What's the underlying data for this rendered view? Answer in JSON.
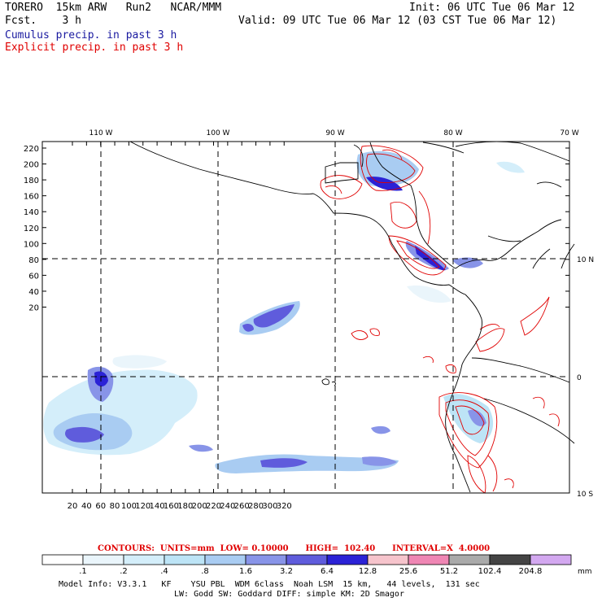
{
  "header": {
    "model_title": "TORERO  15km ARW   Run2   NCAR/MMM",
    "forecast": "Fcst.    3 h",
    "init": "Init: 06 UTC Tue 06 Mar 12",
    "valid": "Valid: 09 UTC Tue 06 Mar 12 (03 CST Tue 06 Mar 12)",
    "legend_cumulus": "Cumulus precip. in past 3 h",
    "legend_explicit": "Explicit precip. in past 3 h"
  },
  "map": {
    "top_lon_labels": [
      "110 W",
      "100 W",
      "90 W",
      "80 W",
      "70 W"
    ],
    "right_lat_labels": [
      "10 N",
      "0",
      "10 S"
    ],
    "y_ticks": [
      "220",
      "200",
      "180",
      "160",
      "140",
      "120",
      "100",
      "80",
      "60",
      "40",
      "20"
    ],
    "x_ticks": [
      "20",
      "40",
      "60",
      "80",
      "100",
      "120",
      "140",
      "160",
      "180",
      "200",
      "220",
      "240",
      "260",
      "280",
      "300",
      "320"
    ]
  },
  "colorbar": {
    "caption": "CONTOURS:  UNITS=mm  LOW= 0.10000      HIGH=  102.40      INTERVAL=X  4.0000",
    "labels": [
      ".1",
      ".2",
      ".4",
      ".8",
      "1.6",
      "3.2",
      "6.4",
      "12.8",
      "25.6",
      "51.2",
      "102.4",
      "204.8"
    ],
    "unit": "mm",
    "colors": [
      "#ffffff",
      "#eaf5fb",
      "#d4eefa",
      "#bde4f6",
      "#a9ccf2",
      "#8894e8",
      "#5f5cdc",
      "#2b22d6",
      "#f6c4cc",
      "#ef86b4",
      "#aaaaaa",
      "#444444",
      "#d3a8f0"
    ]
  },
  "footer": {
    "line1": "Model Info: V3.3.1   KF    YSU PBL  WDM 6class  Noah LSM  15 km,   44 levels,  131 sec",
    "line2": "LW: Godd SW: Goddard DIFF: simple KM: 2D Smagor"
  }
}
